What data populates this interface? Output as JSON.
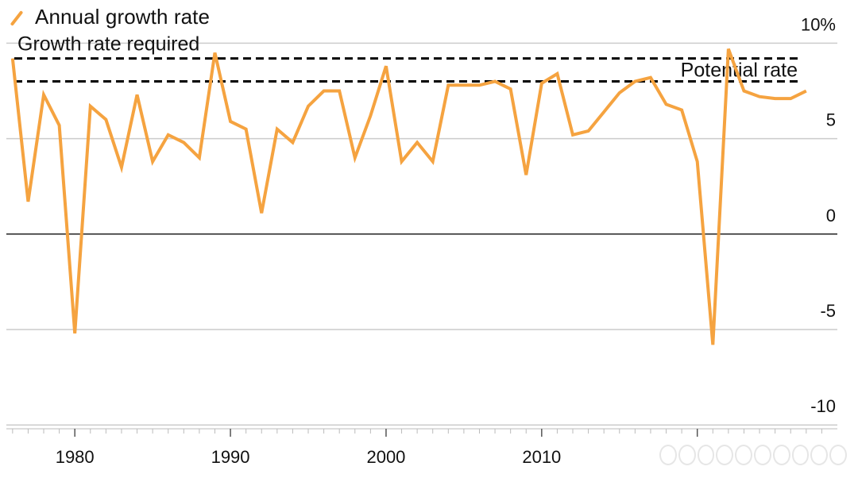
{
  "legend": {
    "label": "Annual growth rate"
  },
  "colors": {
    "series": "#f5a340",
    "grid": "#cccccc",
    "zero": "#222222",
    "text": "#111111"
  },
  "chart_data": {
    "type": "line",
    "title": "",
    "xlabel": "",
    "ylabel": "",
    "xlim": [
      1975.6,
      2029
    ],
    "ylim": [
      -10.2,
      10.6
    ],
    "x_ticks": [
      "1980",
      "1990",
      "2000",
      "2010"
    ],
    "y_ticks": [
      "10%",
      "5",
      "0",
      "-5",
      "-10"
    ],
    "grid": true,
    "legend_position": "top-left",
    "series": [
      {
        "name": "Annual growth rate",
        "x": [
          1976,
          1977,
          1978,
          1979,
          1980,
          1981,
          1982,
          1983,
          1984,
          1985,
          1986,
          1987,
          1988,
          1989,
          1990,
          1991,
          1992,
          1993,
          1994,
          1995,
          1996,
          1997,
          1998,
          1999,
          2000,
          2001,
          2002,
          2003,
          2004,
          2005,
          2006,
          2007,
          2008,
          2009,
          2010,
          2011,
          2012,
          2013,
          2014,
          2015,
          2016,
          2017,
          2018,
          2019,
          2020,
          2021,
          2022,
          2023,
          2024,
          2025,
          2026,
          2027
        ],
        "y": [
          9.2,
          1.7,
          7.3,
          5.7,
          -5.2,
          6.7,
          6.0,
          3.5,
          7.3,
          3.8,
          5.2,
          4.8,
          4.0,
          9.5,
          5.9,
          5.5,
          1.1,
          5.5,
          4.8,
          6.7,
          7.5,
          7.5,
          4.0,
          6.2,
          8.8,
          3.8,
          4.8,
          3.8,
          7.8,
          7.8,
          7.8,
          8.0,
          7.6,
          3.1,
          7.9,
          8.4,
          5.2,
          5.4,
          6.4,
          7.4,
          8.0,
          8.2,
          6.8,
          6.5,
          3.8,
          -5.8,
          9.7,
          7.5,
          7.2,
          7.1,
          7.1,
          7.5
        ]
      }
    ],
    "reference_lines": [
      {
        "label": "Growth rate required",
        "value": 9.2
      },
      {
        "label": "Potential rate",
        "value": 8.0
      }
    ]
  }
}
